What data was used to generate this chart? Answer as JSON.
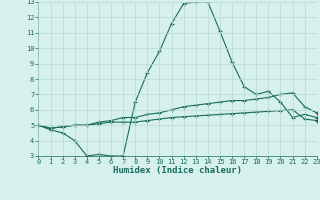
{
  "xlabel": "Humidex (Indice chaleur)",
  "background_color": "#d6f0ee",
  "grid_color": "#b8d8d4",
  "line_color": "#1a6b5a",
  "x_min": 0,
  "x_max": 23,
  "y_min": 3,
  "y_max": 13,
  "line1_x": [
    0,
    1,
    2,
    3,
    4,
    5,
    6,
    7,
    8,
    9,
    10,
    11,
    12,
    13,
    14,
    15,
    16,
    17,
    18,
    19,
    20,
    21,
    22,
    23
  ],
  "line1_y": [
    5.0,
    4.7,
    4.5,
    4.0,
    3.0,
    3.1,
    3.0,
    3.0,
    6.5,
    8.4,
    9.8,
    11.6,
    12.9,
    13.0,
    13.0,
    11.1,
    9.1,
    7.5,
    7.0,
    7.2,
    6.5,
    5.5,
    5.7,
    5.5
  ],
  "line2_x": [
    0,
    1,
    2,
    3,
    4,
    5,
    6,
    7,
    8,
    9,
    10,
    11,
    12,
    13,
    14,
    15,
    16,
    17,
    18,
    19,
    20,
    21,
    22,
    23
  ],
  "line2_y": [
    5.0,
    4.8,
    4.9,
    5.0,
    5.0,
    5.2,
    5.3,
    5.5,
    5.5,
    5.7,
    5.8,
    6.0,
    6.2,
    6.3,
    6.4,
    6.5,
    6.6,
    6.6,
    6.7,
    6.8,
    7.0,
    7.1,
    6.2,
    5.8
  ],
  "line3_x": [
    0,
    1,
    2,
    3,
    4,
    5,
    6,
    7,
    8,
    9,
    10,
    11,
    12,
    13,
    14,
    15,
    16,
    17,
    18,
    19,
    20,
    21,
    22,
    23
  ],
  "line3_y": [
    5.0,
    4.8,
    4.9,
    5.0,
    5.0,
    5.1,
    5.2,
    5.2,
    5.2,
    5.3,
    5.4,
    5.5,
    5.55,
    5.6,
    5.65,
    5.7,
    5.75,
    5.8,
    5.85,
    5.9,
    5.95,
    6.0,
    5.4,
    5.3
  ]
}
